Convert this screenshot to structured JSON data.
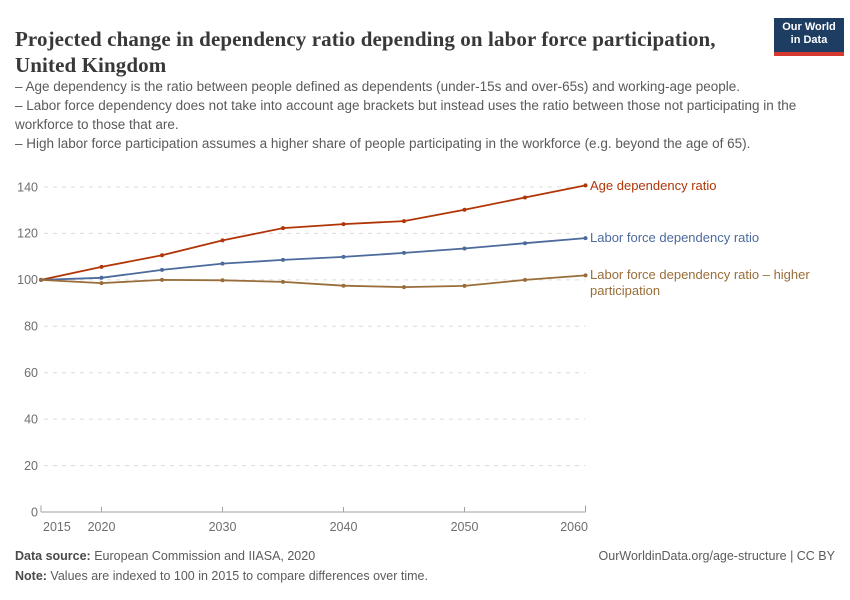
{
  "header": {
    "title": "Projected change in dependency ratio depending on labor force participation, United Kingdom",
    "logo": {
      "line1": "Our World",
      "line2": "in Data",
      "bg_color": "#1d3d63",
      "stripe_color": "#d5382e"
    }
  },
  "subtitle_bullets": [
    "– Age dependency is the ratio between people defined as dependents (under-15s and over-65s) and working-age people.",
    "– Labor force dependency does not take into account age brackets but instead uses the ratio between those not participating in the workforce to those that are.",
    "– High labor force participation assumes a higher share of people participating in the workforce (e.g. beyond the age of 65)."
  ],
  "chart_data": {
    "type": "line",
    "title": "Projected change in dependency ratio depending on labor force participation, United Kingdom",
    "xlabel": "",
    "ylabel": "",
    "x": [
      2015,
      2020,
      2025,
      2030,
      2035,
      2040,
      2045,
      2050,
      2055,
      2060
    ],
    "series": [
      {
        "name": "Age dependency ratio",
        "color": "#B13507",
        "values": [
          100,
          105.6,
          110.6,
          117.0,
          122.3,
          124.0,
          125.3,
          130.2,
          135.5,
          140.7
        ]
      },
      {
        "name": "Labor force dependency ratio",
        "color": "#4C6A9C",
        "values": [
          100,
          100.9,
          104.3,
          107.0,
          108.6,
          109.9,
          111.6,
          113.5,
          115.8,
          118.0
        ]
      },
      {
        "name": "Labor force dependency ratio – higher participation",
        "color": "#996D39",
        "values": [
          100,
          98.6,
          100.0,
          99.8,
          99.1,
          97.5,
          96.9,
          97.4,
          100.0,
          101.9
        ]
      }
    ],
    "ylim": [
      0,
      140
    ],
    "yticks": [
      0,
      20,
      40,
      60,
      80,
      100,
      120,
      140
    ],
    "xticks": [
      2015,
      2020,
      2030,
      2040,
      2050,
      2060
    ],
    "grid": "horizontal-dashed",
    "legend_position": "right",
    "grid_color": "#dcdcdc",
    "axis_color": "#a1a1a1",
    "tick_label_color": "#6e6e6e"
  },
  "footer": {
    "source_label": "Data source:",
    "source_text": " European Commission and IIASA, 2020",
    "note_label": "Note:",
    "note_text": " Values are indexed to 100 in 2015 to compare differences over time.",
    "attribution": "OurWorldinData.org/age-structure | CC BY"
  }
}
